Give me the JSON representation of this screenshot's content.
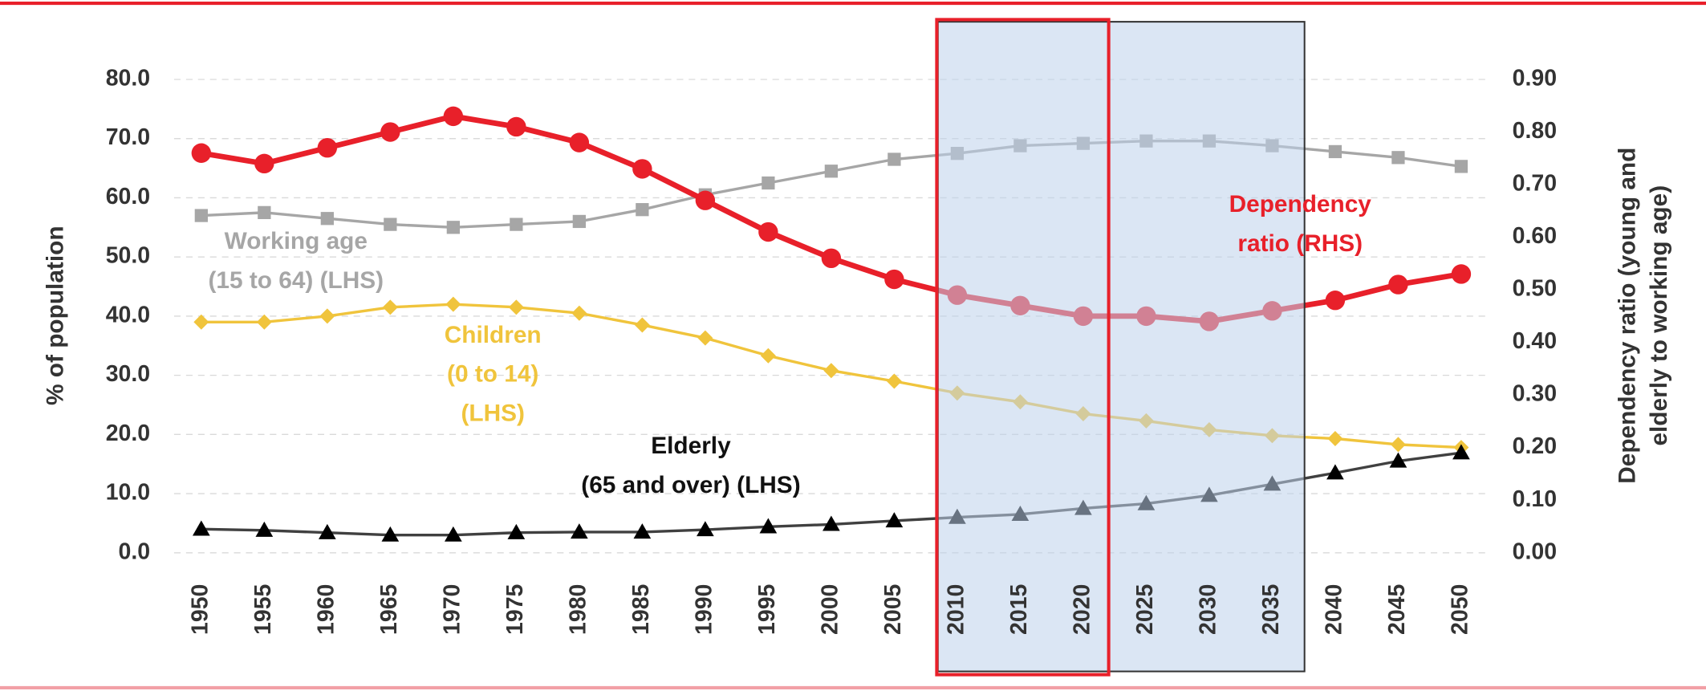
{
  "chart_data": {
    "type": "line",
    "x": [
      1950,
      1955,
      1960,
      1965,
      1970,
      1975,
      1980,
      1985,
      1990,
      1995,
      2000,
      2005,
      2010,
      2015,
      2020,
      2025,
      2030,
      2035,
      2040,
      2045,
      2050
    ],
    "xlim": [
      1950,
      2050
    ],
    "ylabel": "% of population",
    "y2label": [
      "Dependency ratio (young and",
      "elderly to working age)"
    ],
    "ylim": [
      0,
      80
    ],
    "yticks": [
      {
        "value": 0,
        "label": "0.0"
      },
      {
        "value": 10,
        "label": "10.0"
      },
      {
        "value": 20,
        "label": "20.0"
      },
      {
        "value": 30,
        "label": "30.0"
      },
      {
        "value": 40,
        "label": "40.0"
      },
      {
        "value": 50,
        "label": "50.0"
      },
      {
        "value": 60,
        "label": "60.0"
      },
      {
        "value": 70,
        "label": "70.0"
      },
      {
        "value": 80,
        "label": "80.0"
      }
    ],
    "y2lim": [
      0,
      0.9
    ],
    "y2ticks": [
      {
        "value": 0,
        "label": "0.00"
      },
      {
        "value": 0.1,
        "label": "0.10"
      },
      {
        "value": 0.2,
        "label": "0.20"
      },
      {
        "value": 0.3,
        "label": "0.30"
      },
      {
        "value": 0.4,
        "label": "0.40"
      },
      {
        "value": 0.5,
        "label": "0.50"
      },
      {
        "value": 0.6,
        "label": "0.60"
      },
      {
        "value": 0.7,
        "label": "0.70"
      },
      {
        "value": 0.8,
        "label": "0.80"
      },
      {
        "value": 0.9,
        "label": "0.90"
      }
    ],
    "grid": true,
    "series": [
      {
        "name": "Working age (15 to 64) (LHS)",
        "color": "#a6a6a6",
        "marker": "square",
        "values": [
          57,
          57.5,
          56.5,
          55.5,
          55,
          55.5,
          56,
          58,
          60.5,
          62.5,
          64.5,
          66.5,
          67.5,
          68.8,
          69.2,
          69.6,
          69.6,
          68.8,
          67.8,
          66.8,
          65.3
        ]
      },
      {
        "name": "Children (0 to 14) (LHS)",
        "color": "#f0c43c",
        "marker": "diamond",
        "values": [
          39,
          39,
          40,
          41.5,
          42,
          41.5,
          40.5,
          38.5,
          36.3,
          33.3,
          30.8,
          29,
          27,
          25.5,
          23.5,
          22.3,
          20.8,
          19.8,
          19.3,
          18.3,
          17.8
        ]
      },
      {
        "name": "Elderly (65 and over) (LHS)",
        "color": "#404040",
        "marker": "triangle",
        "values": [
          4,
          3.8,
          3.4,
          3,
          3,
          3.4,
          3.5,
          3.5,
          3.9,
          4.4,
          4.8,
          5.4,
          6,
          6.5,
          7.5,
          8.3,
          9.7,
          11.6,
          13.5,
          15.5,
          16.9
        ]
      },
      {
        "name": "Dependency ratio (RHS)",
        "color": "#e8202a",
        "marker": "circle",
        "axis": "y2",
        "values": [
          0.76,
          0.74,
          0.77,
          0.8,
          0.83,
          0.81,
          0.78,
          0.73,
          0.67,
          0.61,
          0.56,
          0.52,
          0.49,
          0.47,
          0.45,
          0.45,
          0.44,
          0.46,
          0.48,
          0.51,
          0.53
        ]
      }
    ],
    "annotations": [
      {
        "series": 0,
        "lines": [
          "Working age",
          "(15 to 64) (LHS)"
        ]
      },
      {
        "series": 1,
        "lines": [
          "Children",
          "(0 to 14)",
          "(LHS)"
        ]
      },
      {
        "series": 2,
        "lines": [
          "Elderly",
          "(65 and over) (LHS)"
        ]
      },
      {
        "series": 3,
        "lines": [
          "Dependency",
          "ratio (RHS)"
        ]
      }
    ]
  }
}
